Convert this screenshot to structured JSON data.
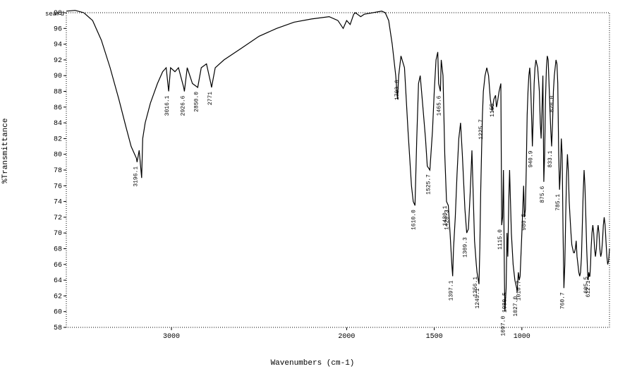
{
  "chart": {
    "type": "line",
    "title_corner": "seard",
    "xlabel": "Wavenumbers (cm-1)",
    "ylabel": "%Transmittance",
    "xlim": [
      3600,
      500
    ],
    "ylim": [
      58,
      98
    ],
    "xticks": [
      3000,
      2000,
      1500,
      1000
    ],
    "yticks": [
      58,
      60,
      62,
      64,
      66,
      68,
      70,
      72,
      74,
      76,
      78,
      80,
      82,
      84,
      86,
      88,
      90,
      92,
      94,
      96,
      98
    ],
    "background_color": "#ffffff",
    "axis_color": "#000000",
    "line_color": "#000000",
    "line_width": 1.2,
    "label_fontsize": 11,
    "tick_fontsize": 10,
    "trough_label_fontsize": 8,
    "spectrum_points": [
      [
        3600,
        98.2
      ],
      [
        3550,
        98.3
      ],
      [
        3500,
        98.0
      ],
      [
        3450,
        97.0
      ],
      [
        3400,
        94.5
      ],
      [
        3350,
        91.0
      ],
      [
        3300,
        87.0
      ],
      [
        3260,
        83.5
      ],
      [
        3230,
        81.0
      ],
      [
        3210,
        80.0
      ],
      [
        3200,
        79.5
      ],
      [
        3196,
        79.0
      ],
      [
        3184,
        80.5
      ],
      [
        3170,
        77.0
      ],
      [
        3164,
        82.0
      ],
      [
        3150,
        84.0
      ],
      [
        3120,
        86.5
      ],
      [
        3080,
        89.0
      ],
      [
        3050,
        90.5
      ],
      [
        3030,
        91.0
      ],
      [
        3016,
        88.0
      ],
      [
        3005,
        91.0
      ],
      [
        2980,
        90.5
      ],
      [
        2960,
        91.0
      ],
      [
        2930,
        88.5
      ],
      [
        2926,
        88.0
      ],
      [
        2910,
        91.0
      ],
      [
        2880,
        89.0
      ],
      [
        2850,
        88.5
      ],
      [
        2830,
        91.0
      ],
      [
        2800,
        91.5
      ],
      [
        2775,
        89.0
      ],
      [
        2771,
        88.5
      ],
      [
        2750,
        91.0
      ],
      [
        2700,
        92.0
      ],
      [
        2600,
        93.5
      ],
      [
        2500,
        95.0
      ],
      [
        2400,
        96.0
      ],
      [
        2300,
        96.8
      ],
      [
        2200,
        97.2
      ],
      [
        2100,
        97.5
      ],
      [
        2050,
        97.0
      ],
      [
        2020,
        96.0
      ],
      [
        2000,
        97.0
      ],
      [
        1980,
        96.5
      ],
      [
        1960,
        97.8
      ],
      [
        1950,
        98.0
      ],
      [
        1920,
        97.5
      ],
      [
        1900,
        97.8
      ],
      [
        1850,
        98.0
      ],
      [
        1800,
        98.2
      ],
      [
        1780,
        98.0
      ],
      [
        1760,
        97.0
      ],
      [
        1740,
        94.0
      ],
      [
        1720,
        90.0
      ],
      [
        1710,
        87.0
      ],
      [
        1703,
        90.0
      ],
      [
        1690,
        92.5
      ],
      [
        1670,
        91.0
      ],
      [
        1650,
        83.0
      ],
      [
        1630,
        76.0
      ],
      [
        1620,
        74.0
      ],
      [
        1610,
        73.5
      ],
      [
        1600,
        82.0
      ],
      [
        1590,
        89.0
      ],
      [
        1580,
        90.0
      ],
      [
        1565,
        86.0
      ],
      [
        1550,
        82.0
      ],
      [
        1540,
        78.5
      ],
      [
        1525,
        78.0
      ],
      [
        1510,
        83.0
      ],
      [
        1500,
        88.0
      ],
      [
        1490,
        92.0
      ],
      [
        1480,
        93.0
      ],
      [
        1475,
        89.0
      ],
      [
        1465,
        88.0
      ],
      [
        1460,
        92.0
      ],
      [
        1450,
        90.0
      ],
      [
        1440,
        80.0
      ],
      [
        1430,
        74.0
      ],
      [
        1420,
        73.5
      ],
      [
        1410,
        70.0
      ],
      [
        1400,
        66.0
      ],
      [
        1395,
        64.5
      ],
      [
        1390,
        68.0
      ],
      [
        1380,
        72.0
      ],
      [
        1370,
        77.5
      ],
      [
        1360,
        82.0
      ],
      [
        1350,
        84.0
      ],
      [
        1340,
        80.0
      ],
      [
        1325,
        73.0
      ],
      [
        1315,
        70.0
      ],
      [
        1305,
        70.5
      ],
      [
        1295,
        75.0
      ],
      [
        1285,
        80.5
      ],
      [
        1270,
        69.0
      ],
      [
        1260,
        66.0
      ],
      [
        1256,
        65.0
      ],
      [
        1245,
        63.5
      ],
      [
        1240,
        68.0
      ],
      [
        1235,
        75.0
      ],
      [
        1230,
        80.5
      ],
      [
        1225,
        85.0
      ],
      [
        1220,
        88.0
      ],
      [
        1210,
        90.0
      ],
      [
        1200,
        91.0
      ],
      [
        1190,
        90.0
      ],
      [
        1180,
        87.0
      ],
      [
        1170,
        85.5
      ],
      [
        1160,
        87.0
      ],
      [
        1150,
        87.5
      ],
      [
        1145,
        86.0
      ],
      [
        1140,
        86.5
      ],
      [
        1130,
        88.0
      ],
      [
        1120,
        89.0
      ],
      [
        1115,
        71.0
      ],
      [
        1110,
        72.0
      ],
      [
        1105,
        78.0
      ],
      [
        1100,
        65.0
      ],
      [
        1097,
        60.0
      ],
      [
        1090,
        63.0
      ],
      [
        1085,
        70.0
      ],
      [
        1080,
        67.0
      ],
      [
        1075,
        74.0
      ],
      [
        1070,
        78.0
      ],
      [
        1060,
        70.0
      ],
      [
        1050,
        66.0
      ],
      [
        1040,
        64.0
      ],
      [
        1030,
        63.0
      ],
      [
        1027,
        62.5
      ],
      [
        1020,
        65.0
      ],
      [
        1015,
        64.0
      ],
      [
        1010,
        64.5
      ],
      [
        1000,
        70.0
      ],
      [
        990,
        76.0
      ],
      [
        985,
        72.0
      ],
      [
        980,
        73.0
      ],
      [
        975,
        78.0
      ],
      [
        970,
        85.0
      ],
      [
        965,
        88.0
      ],
      [
        960,
        90.0
      ],
      [
        955,
        91.0
      ],
      [
        950,
        89.0
      ],
      [
        945,
        85.0
      ],
      [
        940,
        81.0
      ],
      [
        935,
        85.0
      ],
      [
        930,
        89.0
      ],
      [
        925,
        91.0
      ],
      [
        920,
        92.0
      ],
      [
        910,
        91.0
      ],
      [
        900,
        88.0
      ],
      [
        895,
        84.0
      ],
      [
        890,
        82.0
      ],
      [
        885,
        86.0
      ],
      [
        880,
        90.0
      ],
      [
        875,
        76.5
      ],
      [
        870,
        80.0
      ],
      [
        865,
        87.0
      ],
      [
        860,
        91.0
      ],
      [
        855,
        92.5
      ],
      [
        850,
        92.0
      ],
      [
        845,
        89.0
      ],
      [
        840,
        86.0
      ],
      [
        835,
        83.0
      ],
      [
        830,
        81.0
      ],
      [
        825,
        84.0
      ],
      [
        820,
        88.0
      ],
      [
        815,
        90.0
      ],
      [
        810,
        91.0
      ],
      [
        805,
        92.0
      ],
      [
        800,
        91.5
      ],
      [
        795,
        89.0
      ],
      [
        790,
        80.0
      ],
      [
        785,
        75.5
      ],
      [
        780,
        78.0
      ],
      [
        775,
        82.0
      ],
      [
        770,
        80.0
      ],
      [
        765,
        70.0
      ],
      [
        760,
        63.0
      ],
      [
        755,
        66.0
      ],
      [
        750,
        72.0
      ],
      [
        745,
        77.0
      ],
      [
        740,
        80.0
      ],
      [
        735,
        78.0
      ],
      [
        730,
        74.0
      ],
      [
        725,
        72.0
      ],
      [
        720,
        70.0
      ],
      [
        715,
        68.5
      ],
      [
        710,
        68.0
      ],
      [
        705,
        67.5
      ],
      [
        700,
        67.5
      ],
      [
        695,
        68.0
      ],
      [
        690,
        69.0
      ],
      [
        685,
        67.0
      ],
      [
        680,
        66.0
      ],
      [
        675,
        65.0
      ],
      [
        670,
        64.5
      ],
      [
        665,
        65.0
      ],
      [
        660,
        67.0
      ],
      [
        655,
        71.0
      ],
      [
        650,
        75.0
      ],
      [
        645,
        78.0
      ],
      [
        640,
        76.0
      ],
      [
        635,
        72.0
      ],
      [
        630,
        68.0
      ],
      [
        625,
        65.0
      ],
      [
        622,
        64.0
      ],
      [
        618,
        65.0
      ],
      [
        615,
        64.5
      ],
      [
        612,
        64.5
      ],
      [
        608,
        66.0
      ],
      [
        605,
        68.0
      ],
      [
        600,
        70.0
      ],
      [
        595,
        71.0
      ],
      [
        590,
        70.0
      ],
      [
        585,
        68.0
      ],
      [
        580,
        67.0
      ],
      [
        575,
        68.0
      ],
      [
        570,
        70.0
      ],
      [
        565,
        71.0
      ],
      [
        560,
        70.0
      ],
      [
        555,
        68.0
      ],
      [
        550,
        67.0
      ],
      [
        545,
        67.5
      ],
      [
        540,
        69.0
      ],
      [
        535,
        71.0
      ],
      [
        530,
        72.0
      ],
      [
        525,
        71.0
      ],
      [
        520,
        69.0
      ],
      [
        515,
        67.0
      ],
      [
        510,
        66.0
      ],
      [
        505,
        66.5
      ],
      [
        500,
        68.0
      ]
    ],
    "trough_labels": [
      {
        "wn": 3196,
        "t": 79.0,
        "text": "3196.1"
      },
      {
        "wn": 3016,
        "t": 88.0,
        "text": "3016.1"
      },
      {
        "wn": 2926,
        "t": 88.0,
        "text": "2926.6"
      },
      {
        "wn": 2850,
        "t": 88.5,
        "text": "2850.0"
      },
      {
        "wn": 2771,
        "t": 88.5,
        "text": "2771"
      },
      {
        "wn": 1703,
        "t": 90.0,
        "text": "1703.6"
      },
      {
        "wn": 1610,
        "t": 73.5,
        "text": "1610.0"
      },
      {
        "wn": 1525,
        "t": 78.0,
        "text": "1525.7"
      },
      {
        "wn": 1465,
        "t": 88.0,
        "text": "1465.6"
      },
      {
        "wn": 1430,
        "t": 74.0,
        "text": "1430.1"
      },
      {
        "wn": 1420,
        "t": 73.5,
        "text": "1420-3"
      },
      {
        "wn": 1395,
        "t": 64.5,
        "text": "1397.1"
      },
      {
        "wn": 1315,
        "t": 70.0,
        "text": "1309.3"
      },
      {
        "wn": 1256,
        "t": 65.0,
        "text": "1256.1"
      },
      {
        "wn": 1245,
        "t": 63.5,
        "text": "1245.1"
      },
      {
        "wn": 1225,
        "t": 85.0,
        "text": "1225.7"
      },
      {
        "wn": 1160,
        "t": 87.0,
        "text": "1155"
      },
      {
        "wn": 1115,
        "t": 71.0,
        "text": "1115.0"
      },
      {
        "wn": 1097,
        "t": 60.0,
        "text": "1097.0"
      },
      {
        "wn": 1090,
        "t": 63.0,
        "text": "1080.5"
      },
      {
        "wn": 1027,
        "t": 62.5,
        "text": "1027.0"
      },
      {
        "wn": 1010,
        "t": 64.5,
        "text": "1010.7"
      },
      {
        "wn": 980,
        "t": 73.0,
        "text": "980.5"
      },
      {
        "wn": 940,
        "t": 81.0,
        "text": "940.9"
      },
      {
        "wn": 875,
        "t": 76.5,
        "text": "875.6"
      },
      {
        "wn": 830,
        "t": 81.0,
        "text": "833.1"
      },
      {
        "wn": 820,
        "t": 88.0,
        "text": "820.0"
      },
      {
        "wn": 785,
        "t": 75.5,
        "text": "785.1"
      },
      {
        "wn": 760,
        "t": 63.0,
        "text": "760.7"
      },
      {
        "wn": 625,
        "t": 65.0,
        "text": "605.5"
      },
      {
        "wn": 612,
        "t": 64.5,
        "text": "612.1"
      }
    ]
  }
}
